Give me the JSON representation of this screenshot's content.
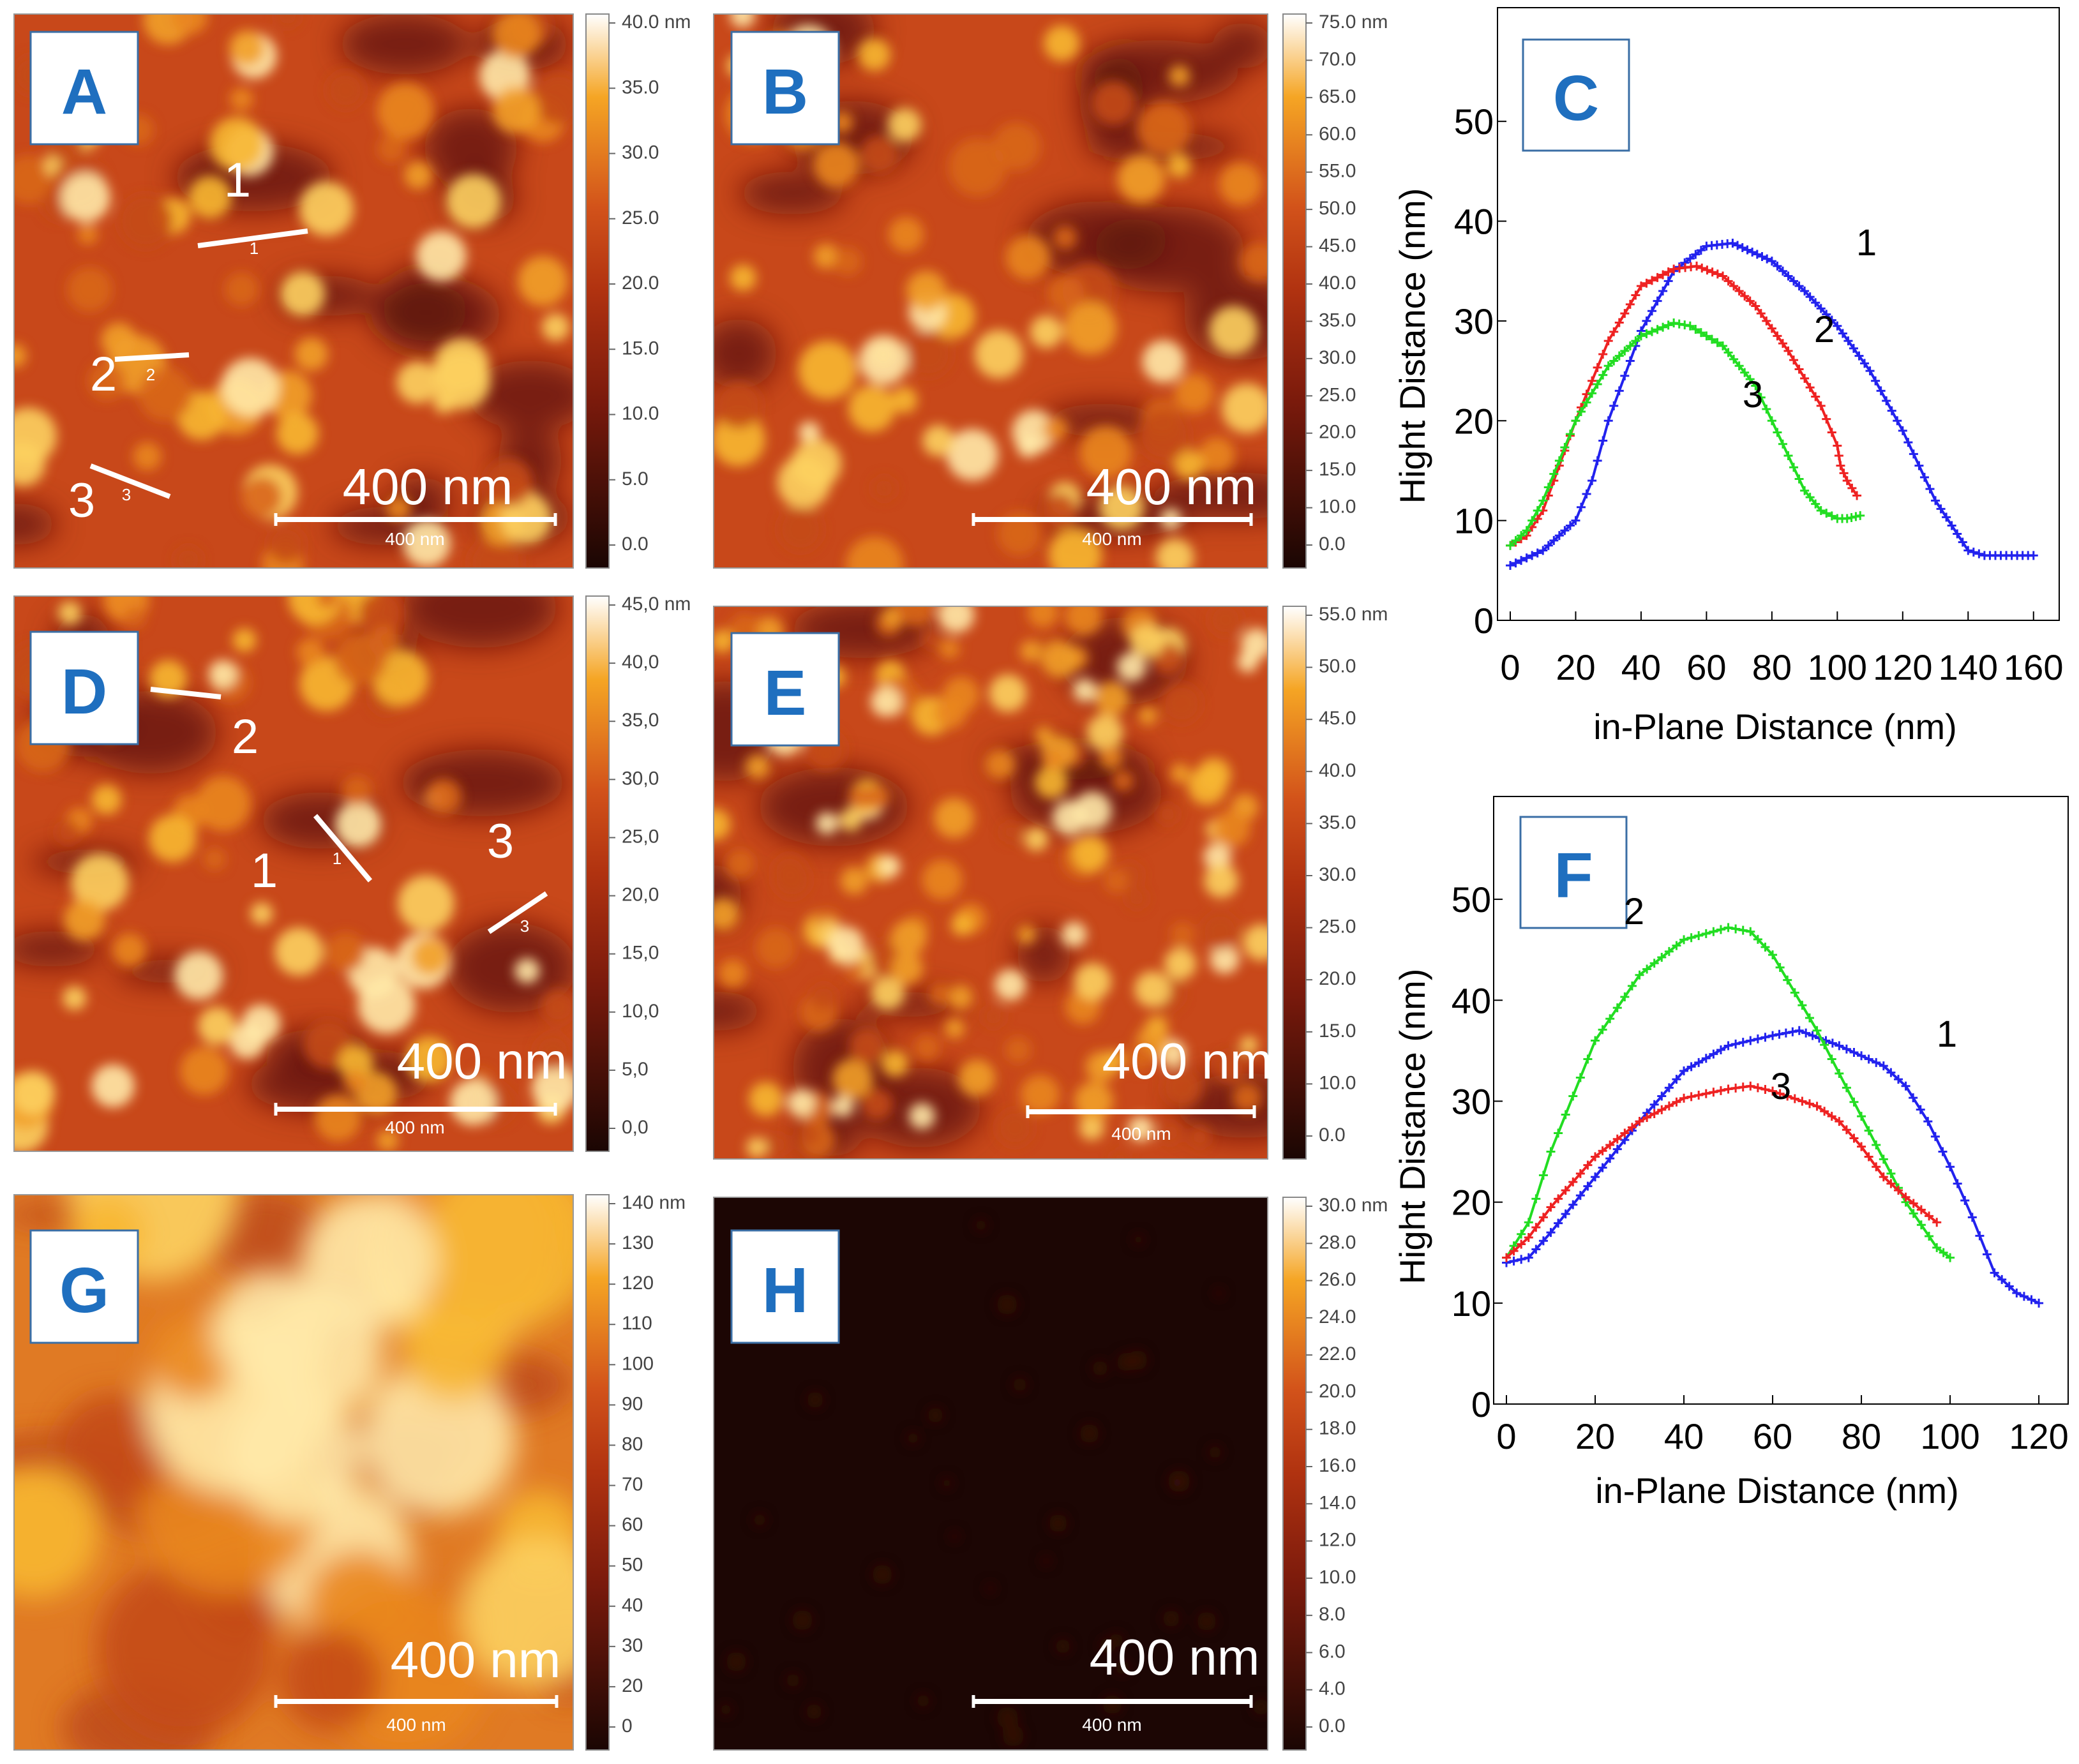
{
  "afm_panels": [
    {
      "letter": "A",
      "colorbar_ticks": [
        "40.0 nm",
        "35.0",
        "30.0",
        "25.0",
        "20.0",
        "15.0",
        "10.0",
        "5.0",
        "0.0"
      ],
      "scale_big": "400 nm",
      "scale_small": "400 nm",
      "profile_lines": [
        {
          "num": "1",
          "small": "1"
        },
        {
          "num": "2",
          "small": "2"
        },
        {
          "num": "3",
          "small": "3"
        }
      ]
    },
    {
      "letter": "B",
      "colorbar_ticks": [
        "75.0 nm",
        "70.0",
        "65.0",
        "60.0",
        "55.0",
        "50.0",
        "45.0",
        "40.0",
        "35.0",
        "30.0",
        "25.0",
        "20.0",
        "15.0",
        "10.0",
        "0.0"
      ],
      "scale_big": "400 nm",
      "scale_small": "400 nm",
      "profile_lines": []
    },
    {
      "letter": "D",
      "colorbar_ticks": [
        "45,0 nm",
        "40,0",
        "35,0",
        "30,0",
        "25,0",
        "20,0",
        "15,0",
        "10,0",
        "5,0",
        "0,0"
      ],
      "scale_big": "400 nm",
      "scale_small": "400 nm",
      "profile_lines": [
        {
          "num": "1",
          "small": "1"
        },
        {
          "num": "2",
          "small": ""
        },
        {
          "num": "3",
          "small": "3"
        }
      ]
    },
    {
      "letter": "E",
      "colorbar_ticks": [
        "55.0 nm",
        "50.0",
        "45.0",
        "40.0",
        "35.0",
        "30.0",
        "25.0",
        "20.0",
        "15.0",
        "10.0",
        "0.0"
      ],
      "scale_big": "400 nm",
      "scale_small": "400 nm",
      "profile_lines": []
    },
    {
      "letter": "G",
      "colorbar_ticks": [
        "140 nm",
        "130",
        "120",
        "110",
        "100",
        "90",
        "80",
        "70",
        "60",
        "50",
        "40",
        "30",
        "20",
        "0"
      ],
      "scale_big": "400 nm",
      "scale_small": "400 nm",
      "profile_lines": []
    },
    {
      "letter": "H",
      "colorbar_ticks": [
        "30.0 nm",
        "28.0",
        "26.0",
        "24.0",
        "22.0",
        "20.0",
        "18.0",
        "16.0",
        "14.0",
        "12.0",
        "10.0",
        "8.0",
        "6.0",
        "4.0",
        "0.0"
      ],
      "scale_big": "400 nm",
      "scale_small": "400 nm",
      "profile_lines": []
    }
  ],
  "colors": {
    "afm_low": "#1a0603",
    "afm_mid_dark": "#b03210",
    "afm_mid": "#d2521a",
    "afm_high": "#f5a524",
    "afm_top": "#ffffff",
    "series_1": "#2222ee",
    "series_2": "#ee2222",
    "series_3": "#22dd22",
    "panel_letter": "#1f6fbf"
  },
  "chart_data": [
    {
      "type": "line",
      "panel": "C",
      "xlabel": "in-Plane Distance (nm)",
      "ylabel": "Hight Distance (nm)",
      "xlim": [
        0,
        162
      ],
      "ylim": [
        0,
        55
      ],
      "xticks": [
        "0",
        "20",
        "40",
        "60",
        "80",
        "100",
        "120",
        "140",
        "160"
      ],
      "yticks": [
        "0",
        "10",
        "20",
        "30",
        "40",
        "50"
      ],
      "grid": false,
      "series": [
        {
          "name": "1",
          "color": "#2222ee",
          "x": [
            0,
            10,
            20,
            25,
            30,
            40,
            50,
            60,
            68,
            80,
            90,
            100,
            110,
            120,
            130,
            140,
            145,
            150,
            160
          ],
          "y": [
            5.5,
            7,
            10,
            14,
            20,
            29,
            35,
            37.5,
            37.8,
            36,
            33,
            29.5,
            25,
            19,
            12,
            7,
            6.5,
            6.5,
            6.5
          ]
        },
        {
          "name": "2",
          "color": "#ee2222",
          "x": [
            0,
            5,
            10,
            20,
            30,
            40,
            50,
            57,
            65,
            75,
            85,
            95,
            100,
            101,
            103,
            106
          ],
          "y": [
            7.5,
            8.5,
            11,
            20,
            28,
            33.5,
            35.2,
            35.5,
            34.5,
            31.5,
            27,
            21.5,
            17.5,
            15.5,
            14,
            12.5
          ]
        },
        {
          "name": "3",
          "color": "#22dd22",
          "x": [
            0,
            5,
            10,
            20,
            30,
            40,
            50,
            55,
            65,
            75,
            85,
            90,
            95,
            100,
            103,
            107
          ],
          "y": [
            7.5,
            9,
            12,
            20,
            25.5,
            28.5,
            29.8,
            29.5,
            27.5,
            23.5,
            16.5,
            13,
            11,
            10.2,
            10.2,
            10.5
          ]
        }
      ]
    },
    {
      "type": "line",
      "panel": "F",
      "xlabel": "in-Plane Distance (nm)",
      "ylabel": "Hight Distance (nm)",
      "xlim": [
        0,
        122
      ],
      "ylim": [
        0,
        55
      ],
      "xticks": [
        "0",
        "20",
        "40",
        "60",
        "80",
        "100",
        "120"
      ],
      "yticks": [
        "0",
        "10",
        "20",
        "30",
        "40",
        "50"
      ],
      "grid": false,
      "series": [
        {
          "name": "1",
          "color": "#2222ee",
          "x": [
            0,
            5,
            10,
            20,
            30,
            40,
            50,
            60,
            66,
            75,
            85,
            90,
            95,
            100,
            105,
            110,
            115,
            120
          ],
          "y": [
            14,
            14.5,
            17,
            22.5,
            28,
            33,
            35.5,
            36.5,
            37,
            35.5,
            33.5,
            31.5,
            28,
            23.5,
            18.5,
            13,
            11,
            10
          ]
        },
        {
          "name": "2",
          "color": "#22dd22",
          "x": [
            0,
            5,
            10,
            20,
            30,
            40,
            50,
            55,
            60,
            70,
            80,
            90,
            97,
            100
          ],
          "y": [
            14.5,
            18,
            25,
            36,
            42.5,
            46,
            47.2,
            46.8,
            44.5,
            37,
            28.5,
            20,
            15.5,
            14.5
          ]
        },
        {
          "name": "3",
          "color": "#ee2222",
          "x": [
            0,
            5,
            10,
            20,
            30,
            40,
            50,
            55,
            60,
            70,
            75,
            80,
            85,
            90,
            97
          ],
          "y": [
            14.5,
            16.5,
            19.5,
            24.5,
            28,
            30.3,
            31.2,
            31.5,
            31,
            29.5,
            28,
            25.5,
            22.5,
            20.5,
            18
          ]
        }
      ]
    }
  ]
}
